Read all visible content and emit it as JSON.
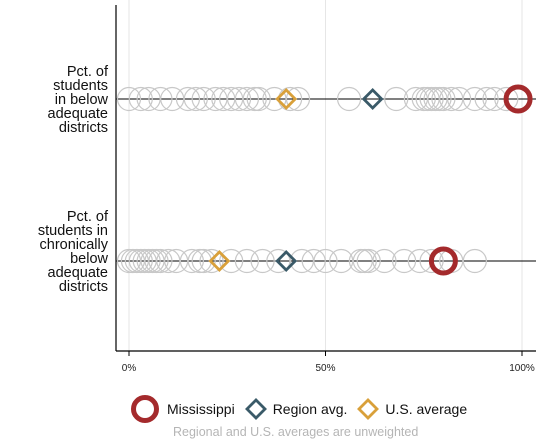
{
  "chart_data": {
    "type": "scatter",
    "rows": [
      {
        "label": "Pct. of\nstudents\nin below\nadequate\ndistricts",
        "other_states": [
          0,
          3,
          5,
          8,
          11,
          15,
          17,
          19,
          22,
          24,
          26,
          28,
          30,
          32,
          33,
          37,
          41,
          43,
          56,
          68,
          73,
          75,
          76,
          77,
          78,
          79,
          80,
          82,
          84,
          88,
          91,
          93,
          96
        ],
        "state": 99,
        "region_avg": 62,
        "us_avg": 40
      },
      {
        "label": "Pct. of\nstudents in\nchronically\nbelow\nadequate\ndistricts",
        "other_states": [
          0,
          1,
          2,
          3,
          4,
          5,
          6,
          7,
          8,
          10,
          12,
          16,
          18,
          19,
          21,
          26,
          30,
          34,
          38,
          44,
          47,
          50,
          54,
          59,
          60,
          61,
          65,
          70,
          74,
          77,
          82,
          88
        ],
        "state": 80,
        "region_avg": 40,
        "us_avg": 23
      }
    ],
    "xlim": [
      0,
      100
    ],
    "ticks": [
      {
        "value": 0,
        "label": "0%"
      },
      {
        "value": 50,
        "label": "50%"
      },
      {
        "value": 100,
        "label": "100%"
      }
    ],
    "grid": true,
    "colors": {
      "state": "#a42a2c",
      "region": "#3a5a68",
      "us": "#d9a03a",
      "other": "#c8c8c8"
    }
  },
  "legend": {
    "state_label": "Mississippi",
    "region_label": "Region avg.",
    "us_label": "U.S. average"
  },
  "note": "Regional and U.S. averages are unweighted"
}
